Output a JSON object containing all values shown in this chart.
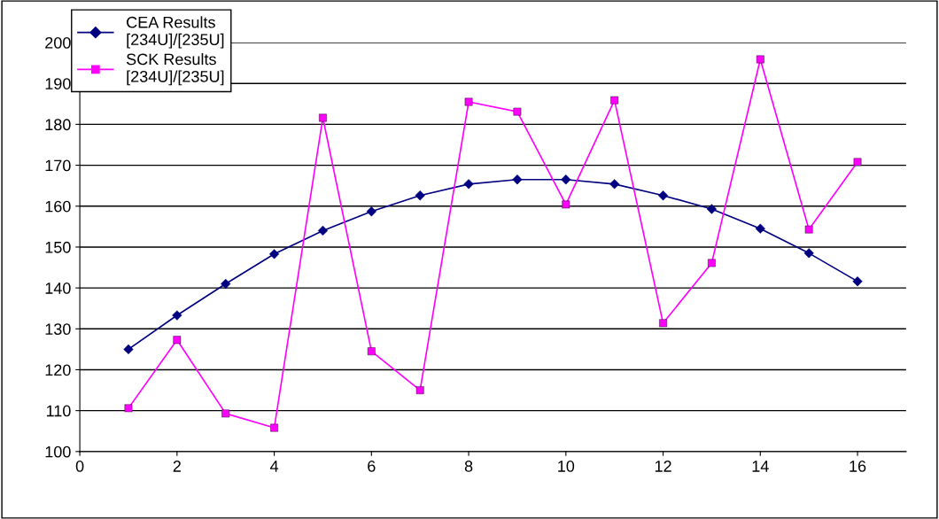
{
  "chart_data": {
    "type": "line",
    "x": [
      1,
      2,
      3,
      4,
      5,
      6,
      7,
      8,
      9,
      10,
      11,
      12,
      13,
      14,
      15,
      16
    ],
    "series": [
      {
        "name": "CEA Results\n[234U]/[235U]",
        "color": "#000080",
        "marker": "diamond",
        "values": [
          125,
          133.3,
          141,
          148.3,
          154,
          158.7,
          162.6,
          165.4,
          166.5,
          166.5,
          165.4,
          162.6,
          159.3,
          154.5,
          148.5,
          141.6
        ]
      },
      {
        "name": "SCK Results\n[234U]/[235U]",
        "color": "#ff00ff",
        "marker": "square",
        "values": [
          110.6,
          127.3,
          109.3,
          105.8,
          181.6,
          124.5,
          115,
          185.5,
          183.1,
          160.4,
          185.9,
          131.4,
          146.1,
          195.9,
          154.3,
          170.8
        ]
      }
    ],
    "xlim": [
      0,
      17
    ],
    "xticks": [
      0,
      2,
      4,
      6,
      8,
      10,
      12,
      14,
      16
    ],
    "ylim": [
      100,
      200
    ],
    "yticks": [
      100,
      110,
      120,
      130,
      140,
      150,
      160,
      170,
      180,
      190,
      200
    ],
    "grid": "y",
    "legend": "top left",
    "line_style": "solid"
  }
}
